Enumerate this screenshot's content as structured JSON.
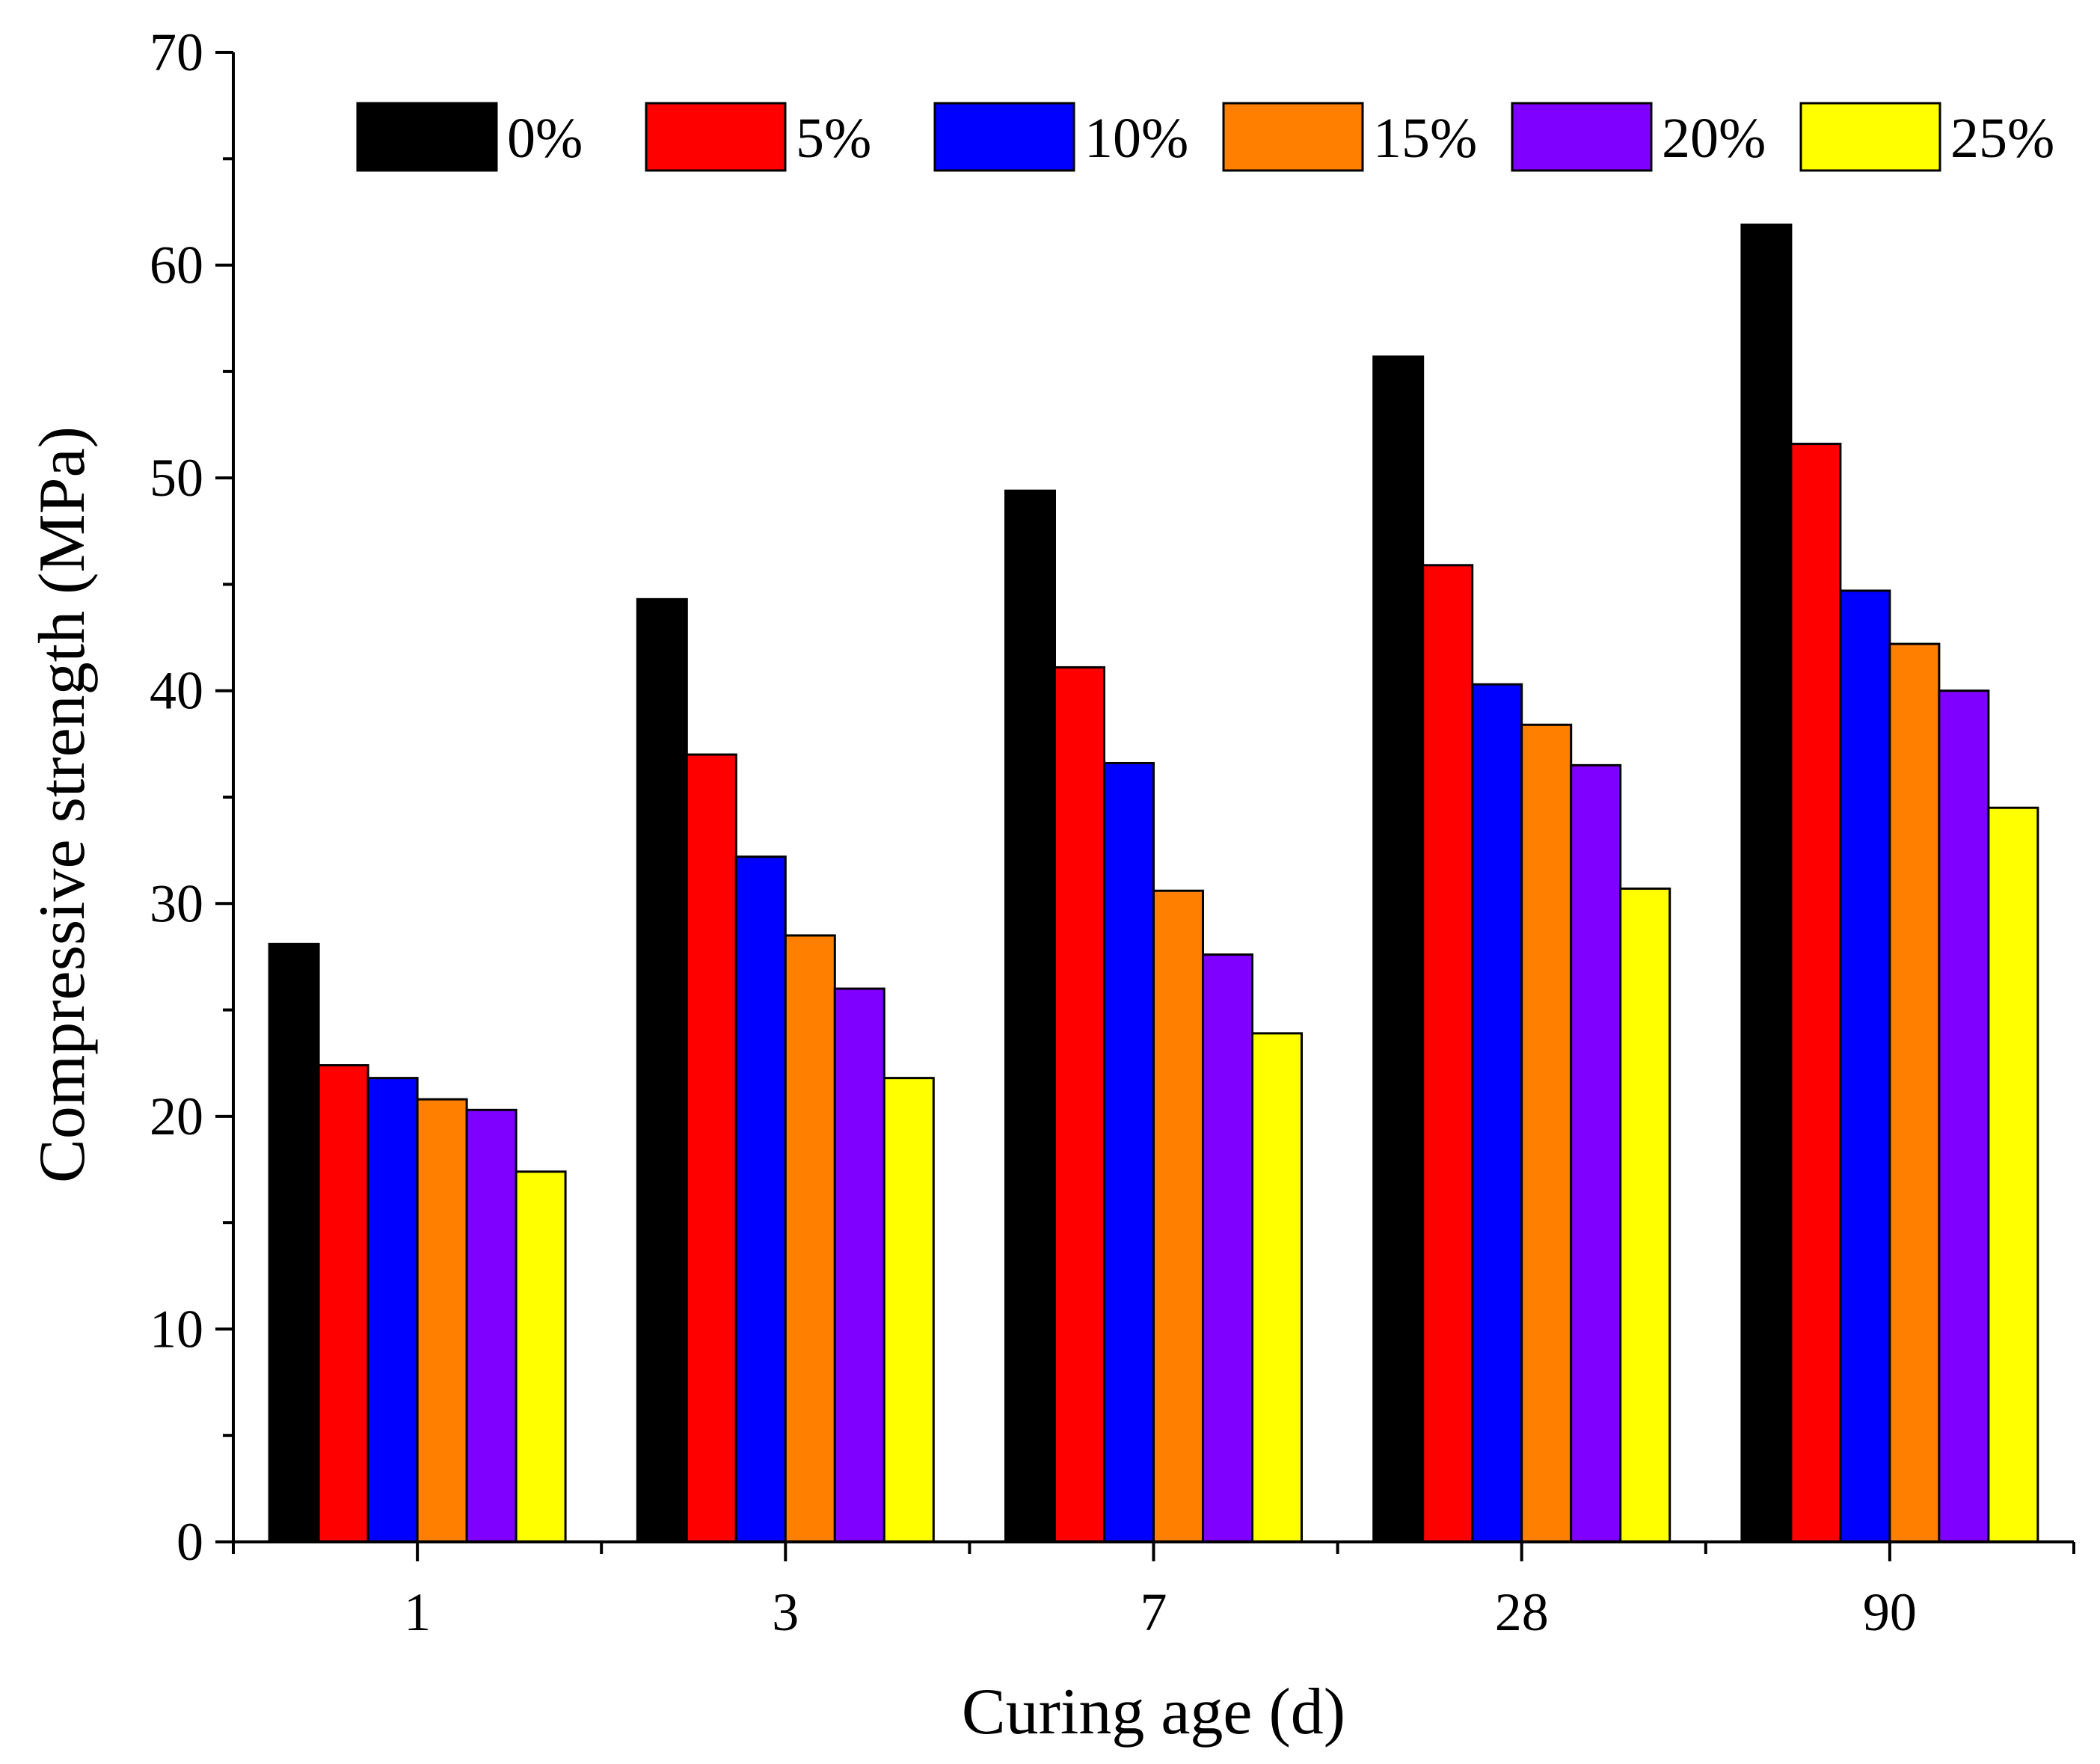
{
  "chart_data": {
    "type": "bar",
    "title": "",
    "xlabel": "Curing age (d)",
    "ylabel": "Compressive strength (MPa)",
    "ylim": [
      0,
      70
    ],
    "yticks": [
      0,
      10,
      20,
      30,
      40,
      50,
      60,
      70
    ],
    "categories": [
      "1",
      "3",
      "7",
      "28",
      "90"
    ],
    "legend_position": "top",
    "grid": false,
    "series": [
      {
        "name": "0%",
        "color": "#000000",
        "values": [
          28.1,
          44.3,
          49.4,
          55.7,
          61.9
        ]
      },
      {
        "name": "5%",
        "color": "#ff0000",
        "values": [
          22.4,
          37.0,
          41.1,
          45.9,
          51.6
        ]
      },
      {
        "name": "10%",
        "color": "#0000ff",
        "values": [
          21.8,
          32.2,
          36.6,
          40.3,
          44.7
        ]
      },
      {
        "name": "15%",
        "color": "#ff8000",
        "values": [
          20.8,
          28.5,
          30.6,
          38.4,
          42.2
        ]
      },
      {
        "name": "20%",
        "color": "#8000ff",
        "values": [
          20.3,
          26.0,
          27.6,
          36.5,
          40.0
        ]
      },
      {
        "name": "25%",
        "color": "#ffff00",
        "values": [
          17.4,
          21.8,
          23.9,
          30.7,
          34.5
        ]
      }
    ]
  }
}
